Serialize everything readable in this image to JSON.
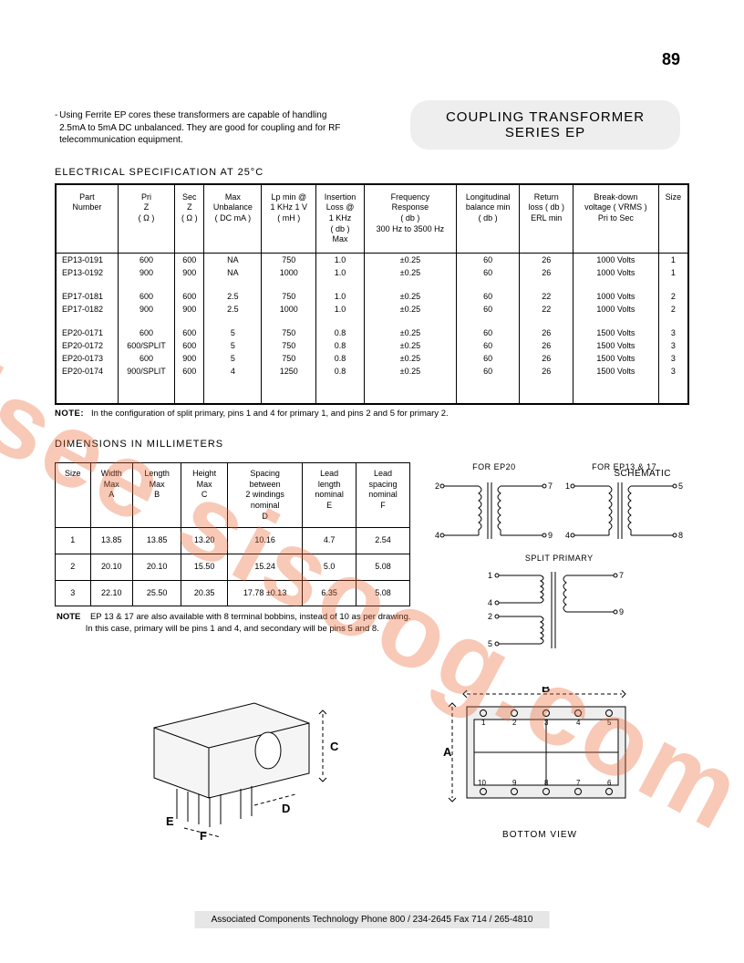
{
  "page_number": "89",
  "title_line1": "COUPLING  TRANSFORMER",
  "title_line2": "SERIES  EP",
  "intro_text": "Using Ferrite EP cores these transformers are capable of handling 2.5mA to 5mA DC unbalanced. They are good for coupling and for RF telecommunication equipment.",
  "spec_heading": "ELECTRICAL  SPECIFICATION  AT  25°C",
  "spec_headers": [
    "Part\nNumber",
    "Pri\nZ\n( Ω )",
    "Sec\nZ\n( Ω )",
    "Max\nUnbalance\n( DC mA )",
    "Lp min @\n1 KHz 1 V\n( mH )",
    "Insertion\nLoss @\n1 KHz\n( db )\nMax",
    "Frequency\nResponse\n( db )\n300 Hz to 3500 Hz",
    "Longitudinal\nbalance  min\n( db )",
    "Return\nloss ( db )\nERL  min",
    "Break-down\nvoltage ( VRMS )\nPri to Sec",
    "Size"
  ],
  "spec_rows": [
    [
      "EP13-0191",
      "600",
      "600",
      "NA",
      "750",
      "1.0",
      "±0.25",
      "60",
      "26",
      "1000 Volts",
      "1"
    ],
    [
      "EP13-0192",
      "900",
      "900",
      "NA",
      "1000",
      "1.0",
      "±0.25",
      "60",
      "26",
      "1000 Volts",
      "1"
    ],
    [],
    [
      "EP17-0181",
      "600",
      "600",
      "2.5",
      "750",
      "1.0",
      "±0.25",
      "60",
      "22",
      "1000 Volts",
      "2"
    ],
    [
      "EP17-0182",
      "900",
      "900",
      "2.5",
      "1000",
      "1.0",
      "±0.25",
      "60",
      "22",
      "1000 Volts",
      "2"
    ],
    [],
    [
      "EP20-0171",
      "600",
      "600",
      "5",
      "750",
      "0.8",
      "±0.25",
      "60",
      "26",
      "1500 Volts",
      "3"
    ],
    [
      "EP20-0172",
      "600/SPLIT",
      "600",
      "5",
      "750",
      "0.8",
      "±0.25",
      "60",
      "26",
      "1500 Volts",
      "3"
    ],
    [
      "EP20-0173",
      "600",
      "900",
      "5",
      "750",
      "0.8",
      "±0.25",
      "60",
      "26",
      "1500 Volts",
      "3"
    ],
    [
      "EP20-0174",
      "900/SPLIT",
      "600",
      "4",
      "1250",
      "0.8",
      "±0.25",
      "60",
      "26",
      "1500 Volts",
      "3"
    ]
  ],
  "spec_note_label": "NOTE:",
  "spec_note_text": "In the configuration of split primary, pins 1 and 4 for primary 1, and pins 2 and 5 for primary 2.",
  "schematic_label": "SCHEMATIC",
  "dim_heading": "DIMENSIONS  IN  MILLIMETERS",
  "dim_headers": [
    "Size",
    "Width\nMax\nA",
    "Length\nMax\nB",
    "Height\nMax\nC",
    "Spacing\nbetween\n2 windings\nnominal\nD",
    "Lead\nlength\nnominal\nE",
    "Lead\nspacing\nnominal\nF"
  ],
  "dim_rows": [
    [
      "1",
      "13.85",
      "13.85",
      "13.20",
      "10.16",
      "4.7",
      "2.54"
    ],
    [
      "2",
      "20.10",
      "20.10",
      "15.50",
      "15.24",
      "5.0",
      "5.08"
    ],
    [
      "3",
      "22.10",
      "25.50",
      "20.35",
      "17.78 ±0.13",
      "6.35",
      "5.08"
    ]
  ],
  "sch_for_ep20": "FOR  EP20",
  "sch_for_ep13_17": "FOR EP13 & 17",
  "sch_split_primary": "SPLIT  PRIMARY",
  "dim_note_label": "NOTE",
  "dim_note_text1": "EP 13 & 17 are also available with 8 terminal bobbins, instead of 10 as per drawing.",
  "dim_note_text2": "In this case, primary will be pins 1 and 4, and secondary will be pins 5 and 8.",
  "bottom_view_label": "BOTTOM  VIEW",
  "footer_text": "Associated Components Technology Phone 800 / 234-2645 Fax 714 / 265-4810",
  "watermark": "isee  sisoog.com",
  "dim_labels": {
    "A": "A",
    "B": "B",
    "C": "C",
    "D": "D",
    "E": "E",
    "F": "F"
  },
  "pins": {
    "p1": "1",
    "p2": "2",
    "p3": "3",
    "p4": "4",
    "p5": "5",
    "p6": "6",
    "p7": "7",
    "p8": "8",
    "p9": "9",
    "p10": "10"
  }
}
